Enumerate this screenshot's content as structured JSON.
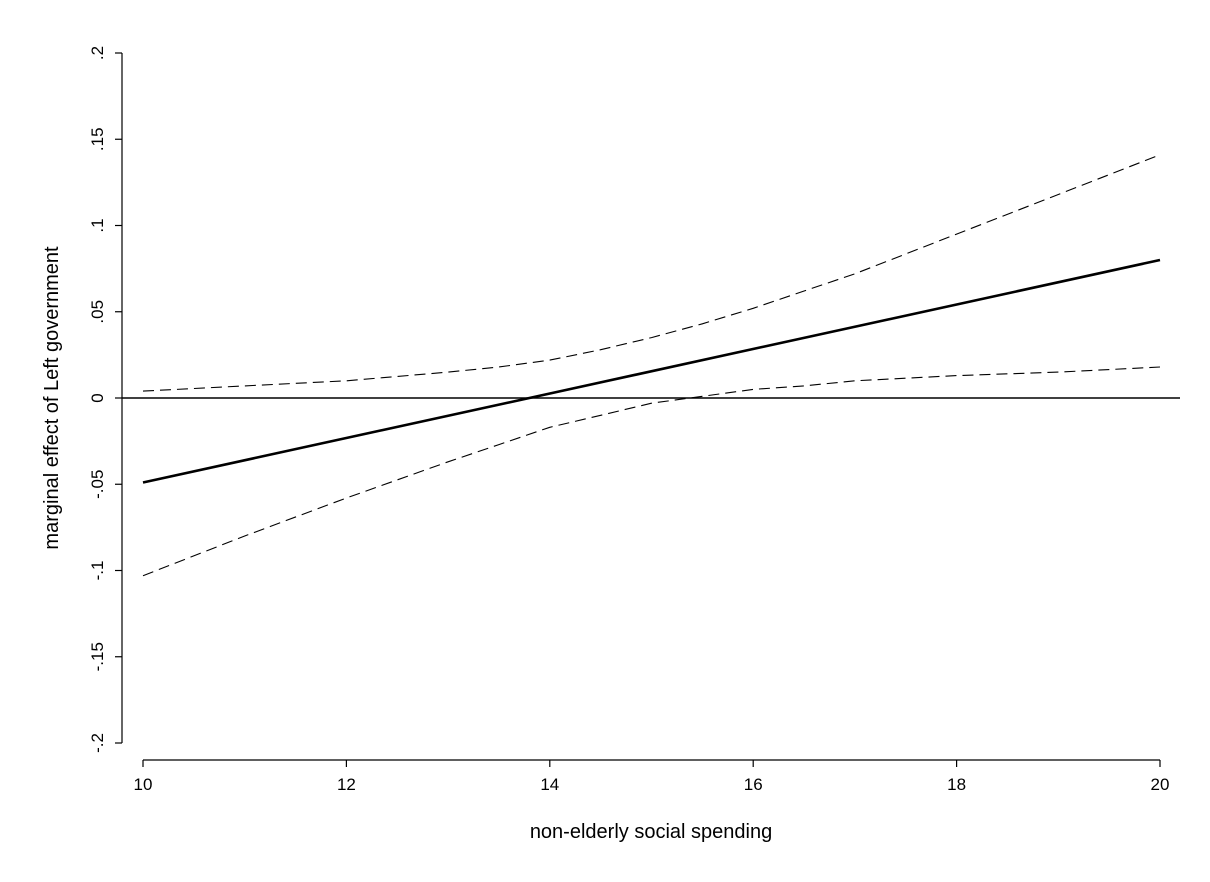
{
  "chart_data": {
    "type": "line",
    "title": "",
    "xlabel": "non-elderly social spending",
    "ylabel": "marginal effect of Left government",
    "xlim": [
      10,
      20
    ],
    "ylim": [
      -0.2,
      0.2
    ],
    "x_ticks": [
      {
        "value": 10,
        "label": "10"
      },
      {
        "value": 12,
        "label": "12"
      },
      {
        "value": 14,
        "label": "14"
      },
      {
        "value": 16,
        "label": "16"
      },
      {
        "value": 18,
        "label": "18"
      },
      {
        "value": 20,
        "label": "20"
      }
    ],
    "y_ticks": [
      {
        "value": -0.2,
        "label": "-.2"
      },
      {
        "value": -0.15,
        "label": "-.15"
      },
      {
        "value": -0.1,
        "label": "-.1"
      },
      {
        "value": -0.05,
        "label": "-.05"
      },
      {
        "value": 0,
        "label": "0"
      },
      {
        "value": 0.05,
        "label": ".05"
      },
      {
        "value": 0.1,
        "label": ".1"
      },
      {
        "value": 0.15,
        "label": ".15"
      },
      {
        "value": 0.2,
        "label": ".2"
      }
    ],
    "grid": false,
    "legend": "none",
    "reference_line": {
      "y": 0
    },
    "series": [
      {
        "role": "estimate",
        "style": "solid",
        "x": [
          10,
          20
        ],
        "y": [
          -0.049,
          0.08
        ]
      },
      {
        "role": "upper-bound",
        "style": "dashed",
        "x": [
          10,
          11,
          12,
          13,
          13.5,
          14,
          14.5,
          15,
          15.5,
          16,
          16.5,
          17,
          18,
          19,
          20
        ],
        "y": [
          0.004,
          0.007,
          0.01,
          0.015,
          0.018,
          0.022,
          0.028,
          0.035,
          0.043,
          0.052,
          0.062,
          0.072,
          0.095,
          0.118,
          0.141
        ]
      },
      {
        "role": "lower-bound",
        "style": "dashed",
        "x": [
          10,
          11,
          12,
          13,
          13.5,
          14,
          14.5,
          15,
          15.5,
          16,
          16.5,
          17,
          18,
          19,
          20
        ],
        "y": [
          -0.103,
          -0.08,
          -0.058,
          -0.037,
          -0.027,
          -0.017,
          -0.01,
          -0.003,
          0.001,
          0.005,
          0.007,
          0.01,
          0.013,
          0.015,
          0.018
        ]
      }
    ]
  }
}
